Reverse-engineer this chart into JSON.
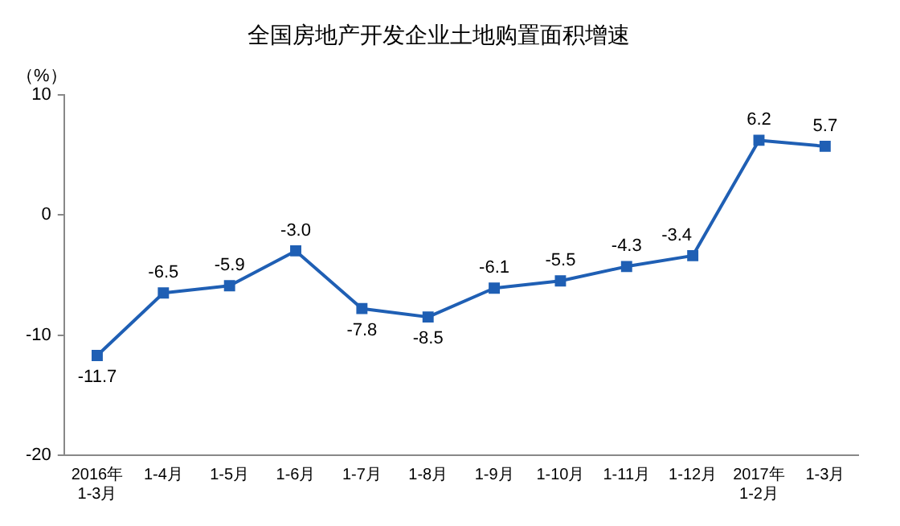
{
  "chart_data": {
    "type": "line",
    "title": "全国房地产开发企业土地购置面积增速",
    "ylabel": "（%）",
    "categories": [
      "2016年\n1-3月",
      "1-4月",
      "1-5月",
      "1-6月",
      "1-7月",
      "1-8月",
      "1-9月",
      "1-10月",
      "1-11月",
      "1-12月",
      "2017年\n1-2月",
      "1-3月"
    ],
    "series": [
      {
        "color": "#1f5fb4",
        "values": [
          -11.7,
          -6.5,
          -5.9,
          -3.0,
          -7.8,
          -8.5,
          -6.1,
          -5.5,
          -4.3,
          -3.4,
          6.2,
          5.7
        ]
      }
    ],
    "ylim": [
      -20,
      10
    ],
    "yticks": [
      -20,
      -10,
      0,
      10
    ],
    "grid": false,
    "legend": false,
    "marker": "square",
    "line_style": "solid",
    "value_labels": [
      "-11.7",
      "-6.5",
      "-5.9",
      "-3.0",
      "-7.8",
      "-8.5",
      "-6.1",
      "-5.5",
      "-4.3",
      "-3.4",
      "6.2",
      "5.7"
    ]
  }
}
